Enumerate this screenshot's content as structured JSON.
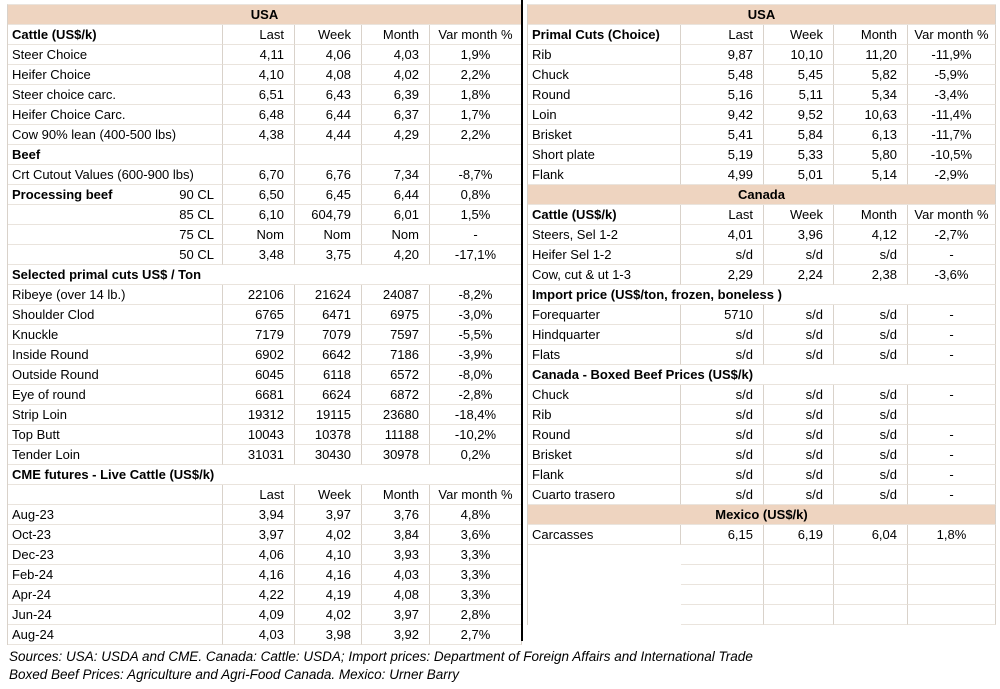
{
  "colors": {
    "band": "#eed4c0",
    "grid": "#d9d2ca",
    "grid_light": "#eae4dd",
    "divider": "#000000"
  },
  "left_table": {
    "rows": [
      [
        "band",
        "USA"
      ],
      [
        "header",
        "Cattle (US$/k)",
        "Last",
        "Week",
        "Month",
        "Var month %"
      ],
      [
        "row",
        "Steer Choice",
        "4,11",
        "4,06",
        "4,03",
        "1,9%"
      ],
      [
        "row",
        "Heifer Choice",
        "4,10",
        "4,08",
        "4,02",
        "2,2%"
      ],
      [
        "row",
        "Steer choice carc.",
        "6,51",
        "6,43",
        "6,39",
        "1,8%"
      ],
      [
        "row",
        "Heifer Choice Carc.",
        "6,48",
        "6,44",
        "6,37",
        "1,7%"
      ],
      [
        "row",
        "Cow 90% lean (400-500 lbs)",
        "4,38",
        "4,44",
        "4,29",
        "2,2%"
      ],
      [
        "section",
        "Beef",
        "",
        "",
        "",
        ""
      ],
      [
        "row",
        "Crt Cutout Values (600-900 lbs)",
        "6,70",
        "6,76",
        "7,34",
        "-8,7%"
      ],
      [
        "splitrow",
        "Processing beef",
        "90 CL",
        "6,50",
        "6,45",
        "6,44",
        "0,8%"
      ],
      [
        "subrow",
        "85 CL",
        "6,10",
        "604,79",
        "6,01",
        "1,5%"
      ],
      [
        "subrow",
        "75 CL",
        "Nom",
        "Nom",
        "Nom",
        "-"
      ],
      [
        "subrow",
        "50 CL",
        "3,48",
        "3,75",
        "4,20",
        "-17,1%"
      ],
      [
        "wide",
        "Selected primal cuts US$ / Ton"
      ],
      [
        "row",
        "Ribeye (over 14 lb.)",
        "22106",
        "21624",
        "24087",
        "-8,2%"
      ],
      [
        "row",
        "Shoulder Clod",
        "6765",
        "6471",
        "6975",
        "-3,0%"
      ],
      [
        "row",
        "Knuckle",
        "7179",
        "7079",
        "7597",
        "-5,5%"
      ],
      [
        "row",
        "Inside Round",
        "6902",
        "6642",
        "7186",
        "-3,9%"
      ],
      [
        "row",
        "Outside Round",
        "6045",
        "6118",
        "6572",
        "-8,0%"
      ],
      [
        "row",
        "Eye of round",
        "6681",
        "6624",
        "6872",
        "-2,8%"
      ],
      [
        "row",
        "Strip Loin",
        "19312",
        "19115",
        "23680",
        "-18,4%"
      ],
      [
        "row",
        "Top Butt",
        "10043",
        "10378",
        "11188",
        "-10,2%"
      ],
      [
        "row",
        "Tender Loin",
        "31031",
        "30430",
        "30978",
        "0,2%"
      ],
      [
        "wide",
        "CME futures - Live Cattle (US$/k)"
      ],
      [
        "header",
        "",
        "Last",
        "Week",
        "Month",
        "Var month %"
      ],
      [
        "row",
        "Aug-23",
        "3,94",
        "3,97",
        "3,76",
        "4,8%"
      ],
      [
        "row",
        "Oct-23",
        "3,97",
        "4,02",
        "3,84",
        "3,6%"
      ],
      [
        "row",
        "Dec-23",
        "4,06",
        "4,10",
        "3,93",
        "3,3%"
      ],
      [
        "row",
        "Feb-24",
        "4,16",
        "4,16",
        "4,03",
        "3,3%"
      ],
      [
        "row",
        "Apr-24",
        "4,22",
        "4,19",
        "4,08",
        "3,3%"
      ],
      [
        "row",
        "Jun-24",
        "4,09",
        "4,02",
        "3,97",
        "2,8%"
      ],
      [
        "row",
        "Aug-24",
        "4,03",
        "3,98",
        "3,92",
        "2,7%"
      ]
    ]
  },
  "right_table": {
    "rows": [
      [
        "band",
        "USA"
      ],
      [
        "header",
        "Primal Cuts (Choice)",
        "Last",
        "Week",
        "Month",
        "Var month %"
      ],
      [
        "row",
        "Rib",
        "9,87",
        "10,10",
        "11,20",
        "-11,9%"
      ],
      [
        "row",
        "Chuck",
        "5,48",
        "5,45",
        "5,82",
        "-5,9%"
      ],
      [
        "row",
        "Round",
        "5,16",
        "5,11",
        "5,34",
        "-3,4%"
      ],
      [
        "row",
        "Loin",
        "9,42",
        "9,52",
        "10,63",
        "-11,4%"
      ],
      [
        "row",
        "Brisket",
        "5,41",
        "5,84",
        "6,13",
        "-11,7%"
      ],
      [
        "row",
        "Short plate",
        "5,19",
        "5,33",
        "5,80",
        "-10,5%"
      ],
      [
        "row",
        "Flank",
        "4,99",
        "5,01",
        "5,14",
        "-2,9%"
      ],
      [
        "band",
        "Canada"
      ],
      [
        "header",
        "Cattle (US$/k)",
        "Last",
        "Week",
        "Month",
        "Var month %"
      ],
      [
        "row",
        "Steers, Sel 1-2",
        "4,01",
        "3,96",
        "4,12",
        "-2,7%"
      ],
      [
        "row",
        "Heifer Sel 1-2",
        "s/d",
        "s/d",
        "s/d",
        "-"
      ],
      [
        "row",
        "Cow, cut & ut 1-3",
        "2,29",
        "2,24",
        "2,38",
        "-3,6%"
      ],
      [
        "wide",
        "Import price (US$/ton, frozen, boneless )"
      ],
      [
        "row",
        "Forequarter",
        "5710",
        "s/d",
        "s/d",
        "-"
      ],
      [
        "row",
        "Hindquarter",
        "s/d",
        "s/d",
        "s/d",
        "-"
      ],
      [
        "row",
        "Flats",
        "s/d",
        "s/d",
        "s/d",
        "-"
      ],
      [
        "wide",
        "Canada - Boxed Beef Prices (US$/k)"
      ],
      [
        "row",
        "Chuck",
        "s/d",
        "s/d",
        "s/d",
        "-"
      ],
      [
        "row",
        "Rib",
        "s/d",
        "s/d",
        "s/d",
        ""
      ],
      [
        "row",
        "Round",
        "s/d",
        "s/d",
        "s/d",
        "-"
      ],
      [
        "row",
        "Brisket",
        "s/d",
        "s/d",
        "s/d",
        "-"
      ],
      [
        "row",
        "Flank",
        "s/d",
        "s/d",
        "s/d",
        "-"
      ],
      [
        "row",
        "Cuarto trasero",
        "s/d",
        "s/d",
        "s/d",
        "-"
      ],
      [
        "band",
        "Mexico (US$/k)"
      ],
      [
        "row",
        "Carcasses",
        "6,15",
        "6,19",
        "6,04",
        "1,8%"
      ],
      [
        "empty"
      ],
      [
        "empty"
      ],
      [
        "empty"
      ],
      [
        "empty"
      ]
    ]
  },
  "sources": {
    "line1": "Sources: USA: USDA and CME. Canada: Cattle: USDA; Import prices: Department of Foreign Affairs and International Trade",
    "line2": "Boxed Beef Prices: Agriculture and Agri-Food Canada. Mexico: Urner Barry"
  }
}
